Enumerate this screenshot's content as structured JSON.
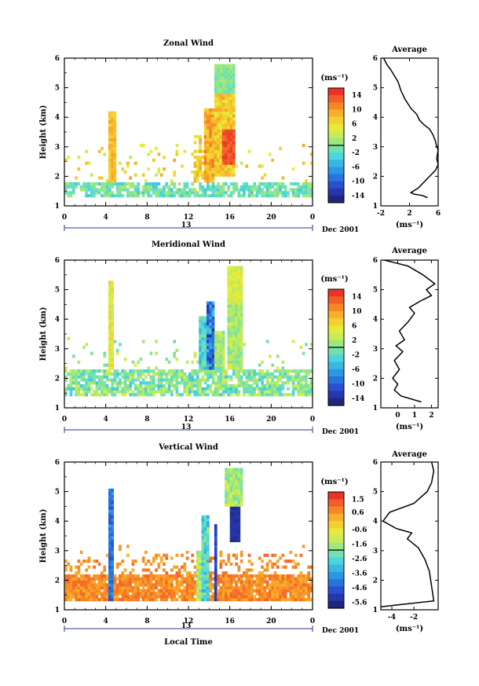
{
  "chart_data": [
    {
      "type": "heatmap",
      "title": "Zonal Wind",
      "ylabel": "Height (km)",
      "ylim": [
        1,
        6
      ],
      "yticks": [
        "1",
        "2",
        "3",
        "4",
        "5",
        "6"
      ],
      "xlim": [
        0,
        24
      ],
      "xticks": [
        "0",
        "4",
        "8",
        "12",
        "16",
        "20",
        "0"
      ],
      "date_day": "13",
      "date_month": "Dec 2001",
      "colorbar": {
        "unit": "(ms⁻¹)",
        "range": [
          -16,
          16
        ],
        "labels": [
          "14",
          "10",
          "6",
          "2",
          "-2",
          "-6",
          "-10",
          "-14"
        ],
        "label_values": [
          14,
          10,
          6,
          2,
          -2,
          -6,
          -10,
          -14
        ]
      },
      "average": {
        "title": "Average",
        "xlabel": "(ms⁻¹)",
        "xlim": [
          -2,
          6
        ],
        "xticks": [
          "-2",
          "2",
          "6"
        ],
        "xtick_values": [
          -2,
          2,
          6
        ],
        "ylim": [
          1,
          6
        ],
        "profile": [
          [
            4.5,
            1.28
          ],
          [
            3.8,
            1.35
          ],
          [
            2.6,
            1.4
          ],
          [
            2.2,
            1.45
          ],
          [
            3.2,
            1.6
          ],
          [
            4.0,
            1.8
          ],
          [
            4.8,
            2.0
          ],
          [
            5.6,
            2.2
          ],
          [
            6.0,
            2.4
          ],
          [
            5.8,
            2.6
          ],
          [
            6.0,
            2.9
          ],
          [
            5.8,
            3.0
          ],
          [
            5.6,
            3.2
          ],
          [
            5.3,
            3.4
          ],
          [
            4.8,
            3.6
          ],
          [
            4.0,
            3.75
          ],
          [
            3.4,
            3.9
          ],
          [
            3.0,
            4.1
          ],
          [
            2.2,
            4.3
          ],
          [
            1.4,
            4.6
          ],
          [
            0.8,
            4.9
          ],
          [
            0.4,
            5.2
          ],
          [
            -0.6,
            5.6
          ],
          [
            -1.2,
            5.8
          ],
          [
            -1.6,
            6.0
          ]
        ]
      }
    },
    {
      "type": "heatmap",
      "title": "Meridional Wind",
      "ylabel": "Height (km)",
      "ylim": [
        1,
        6
      ],
      "yticks": [
        "1",
        "2",
        "3",
        "4",
        "5",
        "6"
      ],
      "xlim": [
        0,
        24
      ],
      "xticks": [
        "0",
        "4",
        "8",
        "12",
        "16",
        "20",
        "0"
      ],
      "date_day": "13",
      "date_month": "Dec 2001",
      "colorbar": {
        "unit": "(ms⁻¹)",
        "range": [
          -16,
          16
        ],
        "labels": [
          "14",
          "10",
          "6",
          "2",
          "-2",
          "-6",
          "-10",
          "-14"
        ],
        "label_values": [
          14,
          10,
          6,
          2,
          -2,
          -6,
          -10,
          -14
        ]
      },
      "average": {
        "title": "Average",
        "xlabel": "(ms⁻¹)",
        "xlim": [
          -1,
          2.4
        ],
        "xticks": [
          "0",
          "1",
          "2"
        ],
        "xtick_values": [
          0,
          1,
          2
        ],
        "ylim": [
          1,
          6
        ],
        "profile": [
          [
            1.4,
            1.2
          ],
          [
            0.2,
            1.4
          ],
          [
            -0.2,
            1.6
          ],
          [
            0.0,
            1.8
          ],
          [
            -0.3,
            2.0
          ],
          [
            0.1,
            2.3
          ],
          [
            -0.2,
            2.6
          ],
          [
            0.3,
            2.9
          ],
          [
            -0.1,
            3.1
          ],
          [
            0.4,
            3.3
          ],
          [
            0.1,
            3.6
          ],
          [
            0.6,
            3.9
          ],
          [
            1.0,
            4.2
          ],
          [
            0.7,
            4.4
          ],
          [
            1.3,
            4.6
          ],
          [
            2.0,
            4.8
          ],
          [
            1.7,
            5.0
          ],
          [
            2.2,
            5.2
          ],
          [
            1.5,
            5.5
          ],
          [
            0.6,
            5.8
          ],
          [
            -0.8,
            6.0
          ]
        ]
      }
    },
    {
      "type": "heatmap",
      "title": "Vertical Wind",
      "ylabel": "Height (km)",
      "xlabel": "Local Time",
      "ylim": [
        1,
        6
      ],
      "yticks": [
        "1",
        "2",
        "3",
        "4",
        "5",
        "6"
      ],
      "xlim": [
        0,
        24
      ],
      "xticks": [
        "0",
        "4",
        "8",
        "12",
        "16",
        "20",
        "0"
      ],
      "date_day": "13",
      "date_month": "Dec 2001",
      "colorbar": {
        "unit": "(ms⁻¹)",
        "range": [
          -6.0,
          2.0
        ],
        "labels": [
          "1.5",
          "0.6",
          "-0.6",
          "-1.6",
          "-2.6",
          "-3.6",
          "-4.6",
          "-5.6"
        ],
        "label_values": [
          1.5,
          0.6,
          -0.6,
          -1.6,
          -2.6,
          -3.6,
          -4.6,
          -5.6
        ]
      },
      "average": {
        "title": "Average",
        "xlabel": "(ms⁻¹)",
        "xlim": [
          -5,
          0.2
        ],
        "xticks": [
          "-4",
          "-2"
        ],
        "xtick_values": [
          -4,
          -2
        ],
        "ylim": [
          1,
          6
        ],
        "profile": [
          [
            -5.0,
            1.1
          ],
          [
            -0.2,
            1.3
          ],
          [
            -0.4,
            1.8
          ],
          [
            -0.6,
            2.3
          ],
          [
            -1.0,
            2.7
          ],
          [
            -1.6,
            3.1
          ],
          [
            -2.6,
            3.4
          ],
          [
            -2.2,
            3.6
          ],
          [
            -3.6,
            3.75
          ],
          [
            -4.8,
            4.0
          ],
          [
            -4.2,
            4.3
          ],
          [
            -2.0,
            4.6
          ],
          [
            -0.8,
            5.0
          ],
          [
            -0.4,
            5.3
          ],
          [
            -0.2,
            5.7
          ],
          [
            -0.4,
            6.0
          ]
        ]
      }
    }
  ]
}
